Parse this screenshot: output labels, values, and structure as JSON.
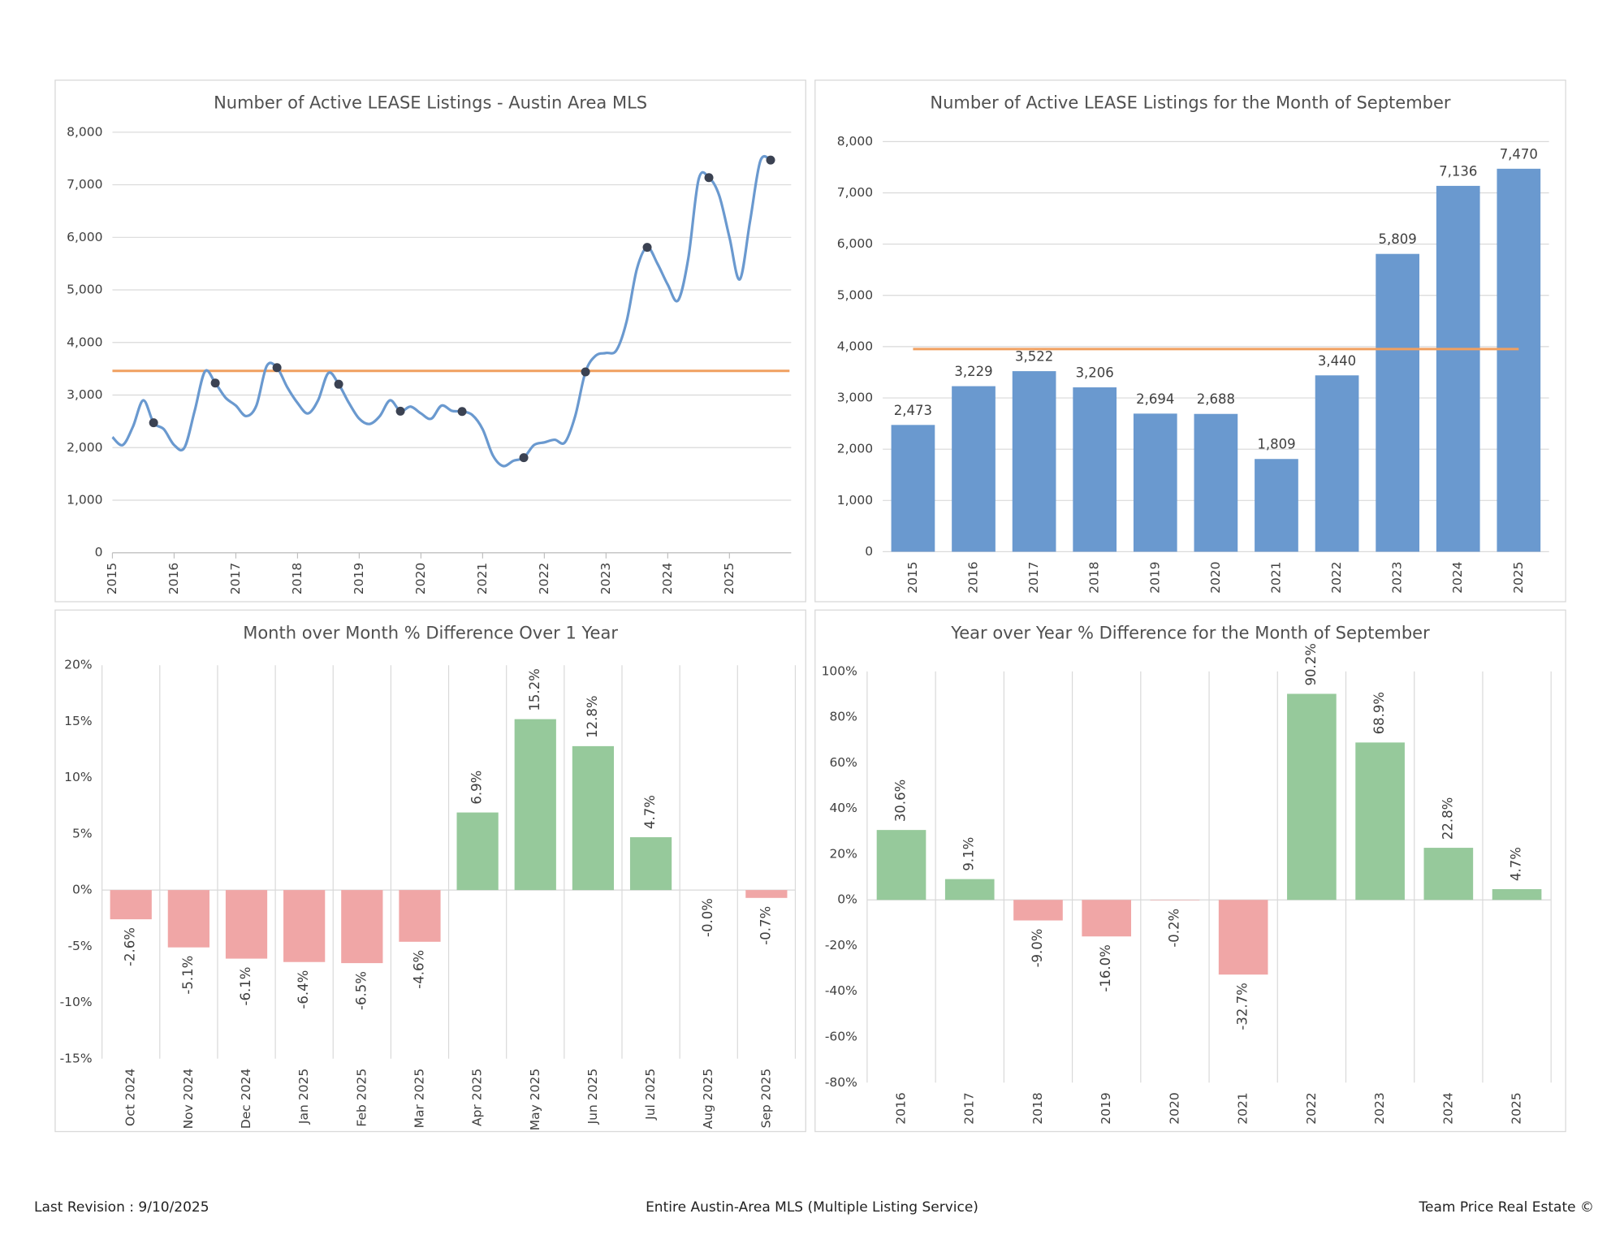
{
  "chart_data": [
    {
      "type": "line",
      "title": "Number of Active LEASE Listings - Austin Area MLS",
      "color": "#6a99cf",
      "marker_color": "#3b4252",
      "x": [
        2015,
        2015.167,
        2015.333,
        2015.5,
        2015.667,
        2015.833,
        2016,
        2016.167,
        2016.333,
        2016.5,
        2016.667,
        2016.833,
        2017,
        2017.167,
        2017.333,
        2017.5,
        2017.667,
        2017.833,
        2018,
        2018.167,
        2018.333,
        2018.5,
        2018.667,
        2018.833,
        2019,
        2019.167,
        2019.333,
        2019.5,
        2019.667,
        2019.833,
        2020,
        2020.167,
        2020.333,
        2020.5,
        2020.667,
        2020.833,
        2021,
        2021.167,
        2021.333,
        2021.5,
        2021.667,
        2021.833,
        2022,
        2022.167,
        2022.333,
        2022.5,
        2022.667,
        2022.833,
        2023,
        2023.167,
        2023.333,
        2023.5,
        2023.667,
        2023.833,
        2024,
        2024.167,
        2024.333,
        2024.5,
        2024.667,
        2024.833,
        2025,
        2025.167,
        2025.333,
        2025.5,
        2025.667
      ],
      "values": [
        2200,
        2050,
        2400,
        2900,
        2473,
        2350,
        2050,
        2000,
        2700,
        3450,
        3229,
        2950,
        2800,
        2600,
        2800,
        3550,
        3522,
        3150,
        2850,
        2650,
        2900,
        3420,
        3206,
        2850,
        2550,
        2450,
        2600,
        2900,
        2694,
        2780,
        2650,
        2550,
        2800,
        2700,
        2688,
        2620,
        2350,
        1850,
        1650,
        1750,
        1809,
        2050,
        2100,
        2150,
        2100,
        2600,
        3440,
        3750,
        3800,
        3850,
        4400,
        5400,
        5809,
        5500,
        5100,
        4800,
        5600,
        7100,
        7136,
        6800,
        6000,
        5200,
        6300,
        7450,
        7470
      ],
      "xlim": [
        2015,
        2026
      ],
      "xticks": [
        2015,
        2016,
        2017,
        2018,
        2019,
        2020,
        2021,
        2022,
        2023,
        2024,
        2025
      ],
      "ylim": [
        0,
        8000
      ],
      "yticks": [
        0,
        {
          "value": 1000,
          "label": "1,000"
        },
        {
          "value": 2000,
          "label": "2,000"
        },
        {
          "value": 3000,
          "label": "3,000"
        },
        {
          "value": 4000,
          "label": "4,000"
        },
        {
          "value": 5000,
          "label": "5,000"
        },
        {
          "value": 6000,
          "label": "6,000"
        },
        {
          "value": 7000,
          "label": "7,000"
        },
        {
          "value": 8000,
          "label": "8,000"
        }
      ],
      "grid": "horizontal",
      "reference_line": {
        "value": 3460,
        "color": "#f0a060"
      }
    },
    {
      "type": "bar",
      "title": "Number of Active LEASE Listings for the Month of September",
      "color": "#6a99cf",
      "categories": [
        "2015",
        "2016",
        "2017",
        "2018",
        "2019",
        "2020",
        "2021",
        "2022",
        "2023",
        "2024",
        "2025"
      ],
      "values": [
        2473,
        3229,
        3522,
        3206,
        2694,
        2688,
        1809,
        3440,
        5809,
        7136,
        7470
      ],
      "value_labels": [
        "2,473",
        "3,229",
        "3,522",
        "3,206",
        "2,694",
        "2,688",
        "1,809",
        "3,440",
        "5,809",
        "7,136",
        "7,470"
      ],
      "ylim": [
        0,
        8000
      ],
      "yticks": [
        0,
        {
          "value": 1000,
          "label": "1,000"
        },
        {
          "value": 2000,
          "label": "2,000"
        },
        {
          "value": 3000,
          "label": "3,000"
        },
        {
          "value": 4000,
          "label": "4,000"
        },
        {
          "value": 5000,
          "label": "5,000"
        },
        {
          "value": 6000,
          "label": "6,000"
        },
        {
          "value": 7000,
          "label": "7,000"
        },
        {
          "value": 8000,
          "label": "8,000"
        }
      ],
      "grid": "horizontal",
      "reference_line": {
        "value": 3952,
        "color": "#f0a060"
      }
    },
    {
      "type": "bar",
      "title": "Month over Month % Difference Over 1 Year",
      "positive_color": "#96c99b",
      "negative_color": "#f0a6a6",
      "positive_label_color": "#404040",
      "negative_label_color": "#e0302c",
      "categories": [
        "Oct 2024",
        "Nov 2024",
        "Dec 2024",
        "Jan 2025",
        "Feb 2025",
        "Mar 2025",
        "Apr 2025",
        "May 2025",
        "Jun 2025",
        "Jul 2025",
        "Aug 2025",
        "Sep 2025"
      ],
      "values": [
        -2.6,
        -5.1,
        -6.1,
        -6.4,
        -6.5,
        -4.6,
        6.9,
        15.2,
        12.8,
        4.7,
        -0.0,
        -0.7
      ],
      "value_labels": [
        "-2.6%",
        "-5.1%",
        "-6.1%",
        "-6.4%",
        "-6.5%",
        "-4.6%",
        "6.9%",
        "15.2%",
        "12.8%",
        "4.7%",
        "-0.0%",
        "-0.7%"
      ],
      "ylim": [
        -15,
        20
      ],
      "yticks": [
        {
          "value": -15,
          "label": "-15%"
        },
        {
          "value": -10,
          "label": "-10%"
        },
        {
          "value": -5,
          "label": "-5%"
        },
        {
          "value": 0,
          "label": "0%"
        },
        {
          "value": 5,
          "label": "5%"
        },
        {
          "value": 10,
          "label": "10%"
        },
        {
          "value": 15,
          "label": "15%"
        },
        {
          "value": 20,
          "label": "20%"
        }
      ],
      "grid": "vertical",
      "rotated_value_labels": true
    },
    {
      "type": "bar",
      "title": "Year over Year % Difference for the Month of September",
      "positive_color": "#96c99b",
      "negative_color": "#f0a6a6",
      "positive_label_color": "#404040",
      "negative_label_color": "#e0302c",
      "categories": [
        "2016",
        "2017",
        "2018",
        "2019",
        "2020",
        "2021",
        "2022",
        "2023",
        "2024",
        "2025"
      ],
      "values": [
        30.6,
        9.1,
        -9.0,
        -16.0,
        -0.2,
        -32.7,
        90.2,
        68.9,
        22.8,
        4.7
      ],
      "value_labels": [
        "30.6%",
        "9.1%",
        "-9.0%",
        "-16.0%",
        "-0.2%",
        "-32.7%",
        "90.2%",
        "68.9%",
        "22.8%",
        "4.7%"
      ],
      "ylim": [
        -80,
        100
      ],
      "yticks": [
        {
          "value": -80,
          "label": "-80%"
        },
        {
          "value": -60,
          "label": "-60%"
        },
        {
          "value": -40,
          "label": "-40%"
        },
        {
          "value": -20,
          "label": "-20%"
        },
        {
          "value": 0,
          "label": "0%"
        },
        {
          "value": 20,
          "label": "20%"
        },
        {
          "value": 40,
          "label": "40%"
        },
        {
          "value": 60,
          "label": "60%"
        },
        {
          "value": 80,
          "label": "80%"
        },
        {
          "value": 100,
          "label": "100%"
        }
      ],
      "grid": "vertical",
      "rotated_value_labels": true
    }
  ],
  "footer": {
    "left": "Last Revision : 9/10/2025",
    "center": "Entire Austin-Area MLS (Multiple Listing Service)",
    "right": "Team Price Real Estate ©"
  }
}
